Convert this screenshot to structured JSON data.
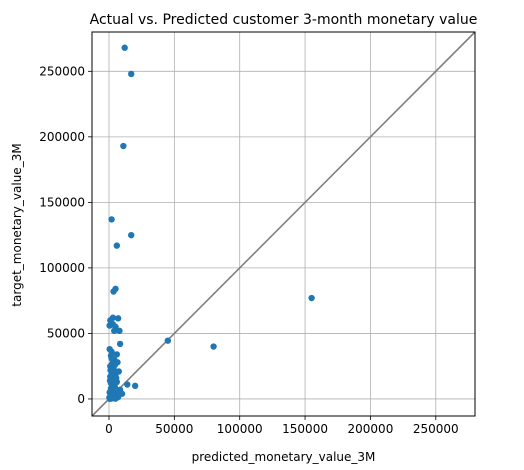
{
  "chart_data": {
    "type": "scatter",
    "title": "Actual vs. Predicted customer 3-month monetary value",
    "xlabel": "predicted_monetary_value_3M",
    "ylabel": "target_monetary_value_3M",
    "xlim": [
      -13000,
      280000
    ],
    "ylim": [
      -13000,
      280000
    ],
    "x_ticks": [
      0,
      50000,
      100000,
      150000,
      200000,
      250000
    ],
    "y_ticks": [
      0,
      50000,
      100000,
      150000,
      200000,
      250000
    ],
    "grid": true,
    "reference_line": {
      "from": [
        -13000,
        -13000
      ],
      "to": [
        280000,
        280000
      ],
      "color": "#808080"
    },
    "point_color": "#1f77b4",
    "line_color": "#808080",
    "points": [
      {
        "x": 12000,
        "y": 268000
      },
      {
        "x": 17000,
        "y": 248000
      },
      {
        "x": 11000,
        "y": 193000
      },
      {
        "x": 2000,
        "y": 137000
      },
      {
        "x": 17000,
        "y": 125000
      },
      {
        "x": 6000,
        "y": 117000
      },
      {
        "x": 5000,
        "y": 84000
      },
      {
        "x": 3500,
        "y": 82000
      },
      {
        "x": 155000,
        "y": 77000
      },
      {
        "x": 3000,
        "y": 62000
      },
      {
        "x": 7000,
        "y": 61500
      },
      {
        "x": 1000,
        "y": 60000
      },
      {
        "x": 500,
        "y": 56000
      },
      {
        "x": 3000,
        "y": 57000
      },
      {
        "x": 5000,
        "y": 55000
      },
      {
        "x": 4000,
        "y": 52000
      },
      {
        "x": 8000,
        "y": 52000
      },
      {
        "x": 45000,
        "y": 44500
      },
      {
        "x": 8500,
        "y": 42000
      },
      {
        "x": 80000,
        "y": 40000
      },
      {
        "x": 500,
        "y": 38000
      },
      {
        "x": 2000,
        "y": 36000
      },
      {
        "x": 1500,
        "y": 33000
      },
      {
        "x": 4000,
        "y": 30000
      },
      {
        "x": 6500,
        "y": 28000
      },
      {
        "x": 2500,
        "y": 27000
      },
      {
        "x": 1000,
        "y": 25000
      },
      {
        "x": 3500,
        "y": 23000
      },
      {
        "x": 7500,
        "y": 21000
      },
      {
        "x": 2000,
        "y": 20000
      },
      {
        "x": 5000,
        "y": 19000
      },
      {
        "x": 1000,
        "y": 17000
      },
      {
        "x": 3000,
        "y": 15000
      },
      {
        "x": 6000,
        "y": 13000
      },
      {
        "x": 14000,
        "y": 11000
      },
      {
        "x": 20000,
        "y": 10000
      },
      {
        "x": 4500,
        "y": 9000
      },
      {
        "x": 1500,
        "y": 8000
      },
      {
        "x": 8500,
        "y": 7000
      },
      {
        "x": 3000,
        "y": 6000
      },
      {
        "x": 500,
        "y": 5000
      },
      {
        "x": 6000,
        "y": 4500
      },
      {
        "x": 10000,
        "y": 4000
      },
      {
        "x": 2000,
        "y": 3500
      },
      {
        "x": 4000,
        "y": 2500
      },
      {
        "x": 1000,
        "y": 2000
      },
      {
        "x": 7000,
        "y": 1500
      },
      {
        "x": 300,
        "y": 1000
      },
      {
        "x": 2500,
        "y": 500
      },
      {
        "x": 5000,
        "y": 300
      },
      {
        "x": 800,
        "y": 100
      },
      {
        "x": 1500,
        "y": 12000
      },
      {
        "x": 2500,
        "y": 10000
      },
      {
        "x": 5500,
        "y": 16000
      },
      {
        "x": 3500,
        "y": 18000
      },
      {
        "x": 800,
        "y": 14000
      },
      {
        "x": 4500,
        "y": 26000
      },
      {
        "x": 2000,
        "y": 31000
      },
      {
        "x": 6000,
        "y": 34000
      },
      {
        "x": 1200,
        "y": 22000
      }
    ]
  }
}
